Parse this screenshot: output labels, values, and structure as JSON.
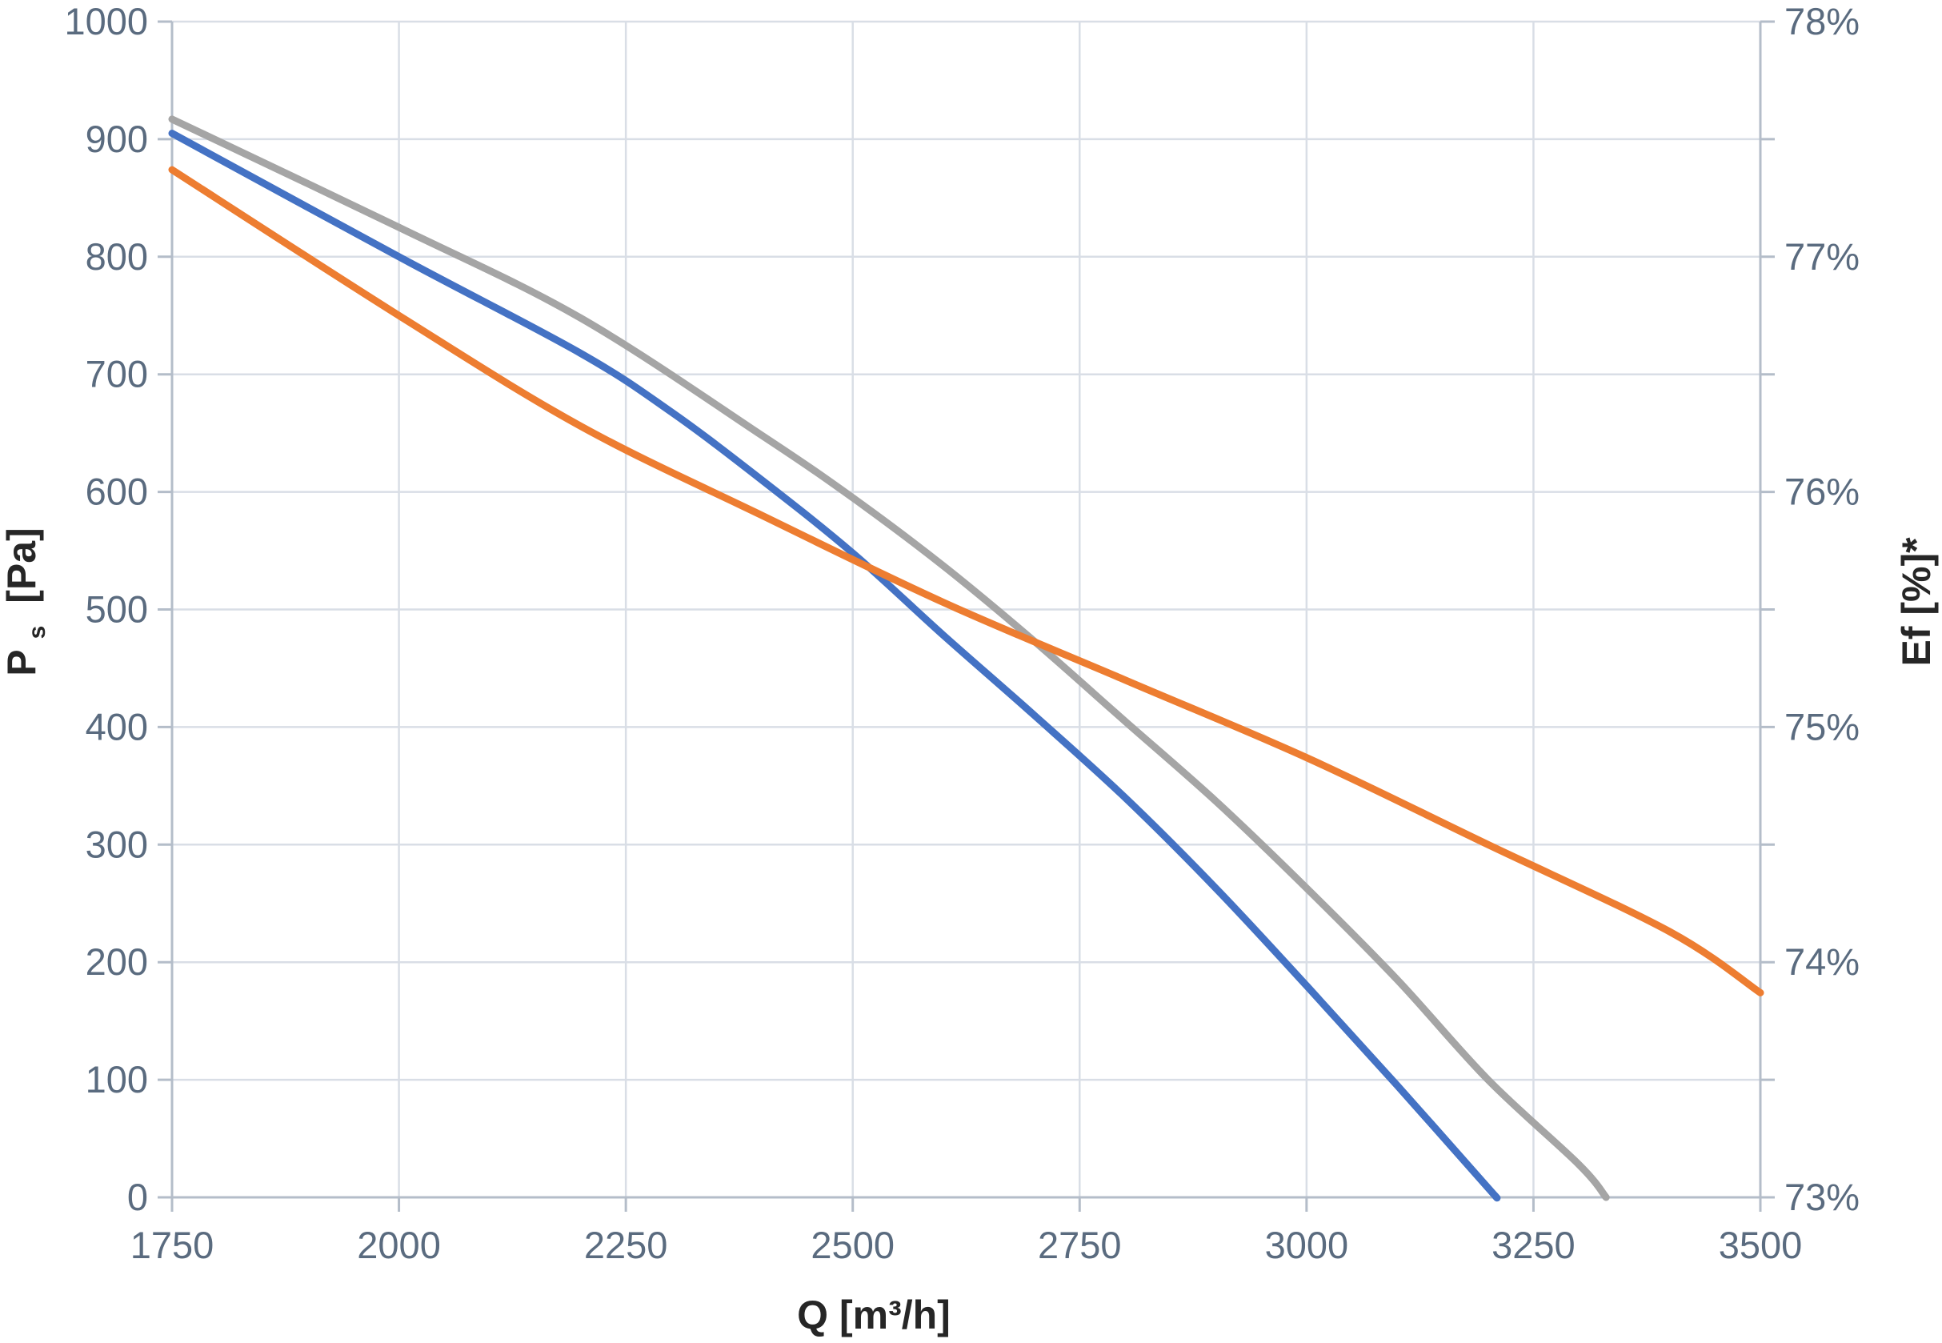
{
  "chart_data": {
    "type": "line",
    "xlabel": "Q [m³/h]",
    "ylabel_left_main": "P",
    "ylabel_left_sub": "s",
    "ylabel_left_unit": "[Pa]",
    "ylabel_right": "Ef [%]*",
    "xlim": [
      1750,
      3500
    ],
    "ylim_left": [
      0,
      1000
    ],
    "ylim_right": [
      73,
      78
    ],
    "x_ticks": [
      "1750",
      "2000",
      "2250",
      "2500",
      "2750",
      "3000",
      "3250",
      "3500"
    ],
    "y_left_ticks": [
      "0",
      "100",
      "200",
      "300",
      "400",
      "500",
      "600",
      "700",
      "800",
      "900",
      "1000"
    ],
    "y_right_ticks": [
      "73%",
      "74%",
      "75%",
      "76%",
      "77%",
      "78%"
    ],
    "grid": true,
    "legend": "none",
    "series": [
      {
        "axis": "left",
        "color": "#4472c4",
        "x": [
          1750,
          2000,
          2200,
          2300,
          2400,
          2500,
          2600,
          2700,
          2800,
          2900,
          3000,
          3100,
          3200,
          3207
        ],
        "values": [
          905,
          800,
          718,
          668,
          610,
          548,
          478,
          410,
          340,
          263,
          180,
          95,
          8,
          2
        ]
      },
      {
        "axis": "left",
        "color": "#a5a5a5",
        "x": [
          1750,
          2000,
          2200,
          2400,
          2500,
          2600,
          2700,
          2800,
          2900,
          3000,
          3100,
          3200,
          3300,
          3330
        ],
        "values": [
          917,
          825,
          748,
          648,
          595,
          537,
          473,
          405,
          337,
          263,
          185,
          100,
          28,
          0
        ]
      },
      {
        "axis": "right",
        "color": "#ed7d31",
        "x": [
          1750,
          2000,
          2200,
          2400,
          2600,
          2800,
          3000,
          3200,
          3400,
          3500
        ],
        "values": [
          77.37,
          76.75,
          76.28,
          75.9,
          75.53,
          75.2,
          74.87,
          74.5,
          74.13,
          73.87
        ]
      }
    ]
  }
}
